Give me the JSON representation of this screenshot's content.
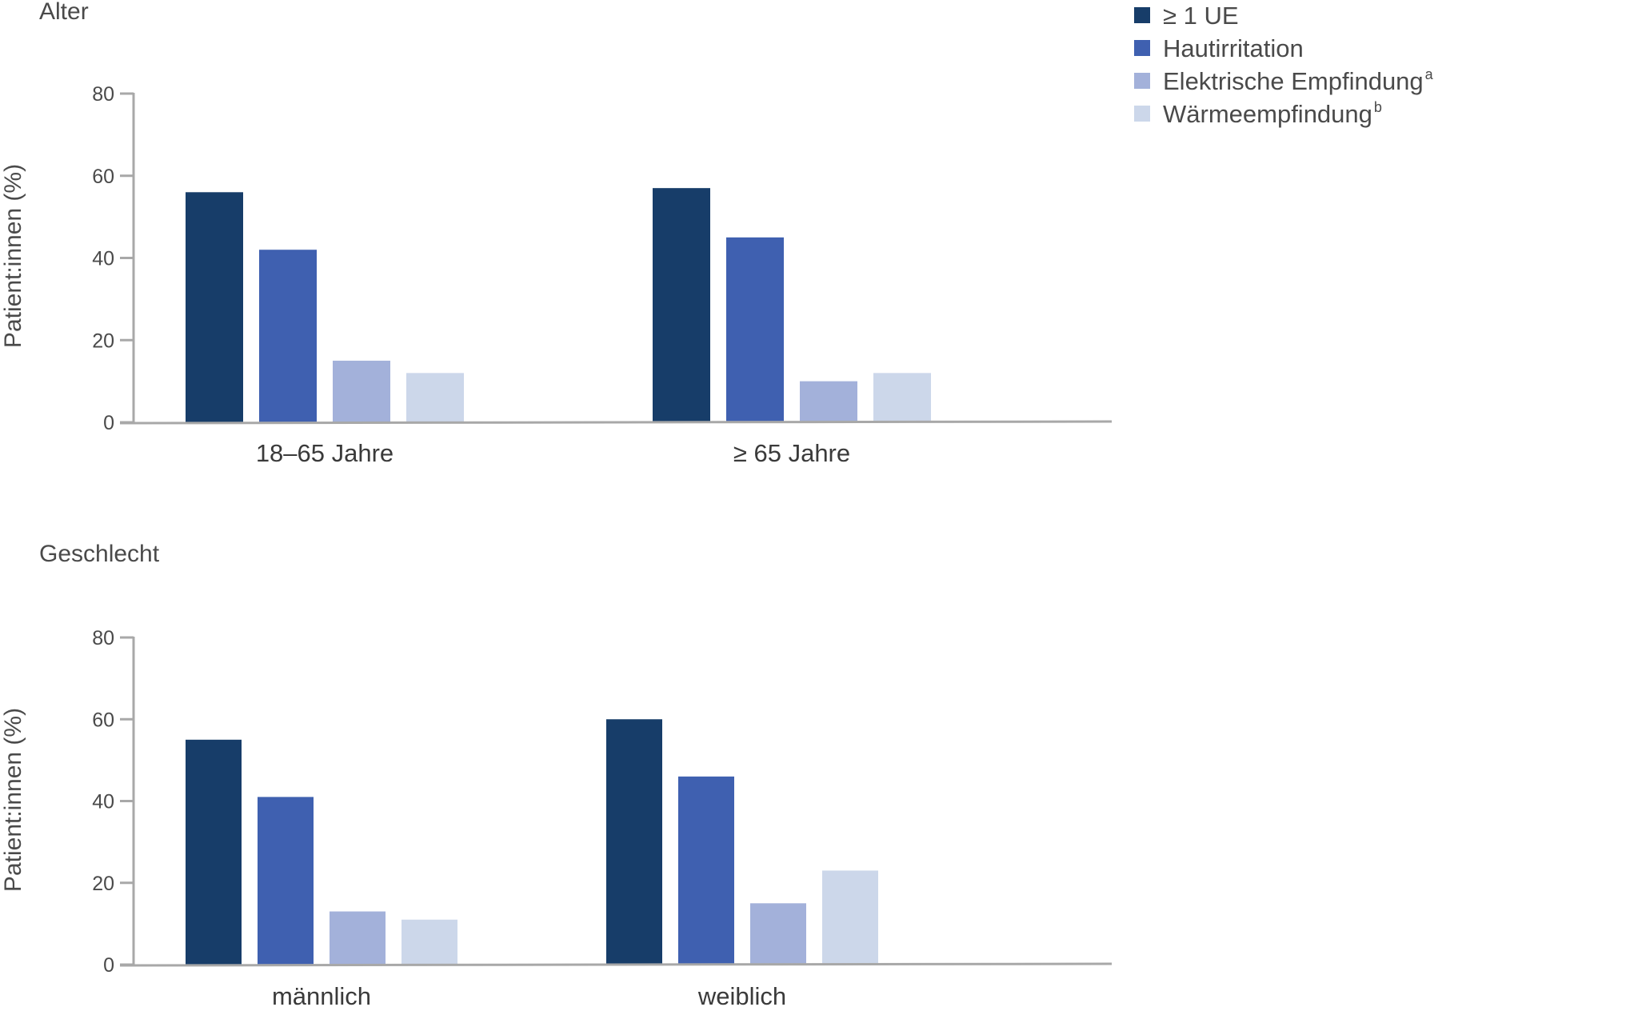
{
  "colors": {
    "series": [
      "#173d69",
      "#3f60b0",
      "#a3b1da",
      "#ccd7ea"
    ],
    "axis": "#a8a8a8",
    "text": "#4a4a4a"
  },
  "legend": {
    "items": [
      {
        "label": "≥ 1 UE",
        "sup": ""
      },
      {
        "label": "Hautirritation",
        "sup": ""
      },
      {
        "label": "Elektrische Empfindung",
        "sup": "a"
      },
      {
        "label": "Wärmeempfindung",
        "sup": "b"
      }
    ]
  },
  "chart_data": [
    {
      "type": "bar",
      "title": "Alter",
      "ylabel": "Patient:innen (%)",
      "xlabel": "",
      "ylim": [
        0,
        80
      ],
      "yticks": [
        "0",
        "20",
        "40",
        "60",
        "80"
      ],
      "categories": [
        "18–65 Jahre",
        "≥ 65 Jahre"
      ],
      "series": [
        {
          "name": "≥ 1 UE",
          "values": [
            56,
            57
          ]
        },
        {
          "name": "Hautirritation",
          "values": [
            42,
            45
          ]
        },
        {
          "name": "Elektrische Empfindung",
          "values": [
            15,
            10
          ]
        },
        {
          "name": "Wärmeempfindung",
          "values": [
            12,
            12
          ]
        }
      ]
    },
    {
      "type": "bar",
      "title": "Geschlecht",
      "ylabel": "Patient:innen (%)",
      "xlabel": "",
      "ylim": [
        0,
        80
      ],
      "yticks": [
        "0",
        "20",
        "40",
        "60",
        "80"
      ],
      "categories": [
        "männlich",
        "weiblich"
      ],
      "series": [
        {
          "name": "≥ 1 UE",
          "values": [
            55,
            60
          ]
        },
        {
          "name": "Hautirritation",
          "values": [
            41,
            46
          ]
        },
        {
          "name": "Elektrische Empfindung",
          "values": [
            13,
            15
          ]
        },
        {
          "name": "Wärmeempfindung",
          "values": [
            11,
            23
          ]
        }
      ]
    }
  ]
}
